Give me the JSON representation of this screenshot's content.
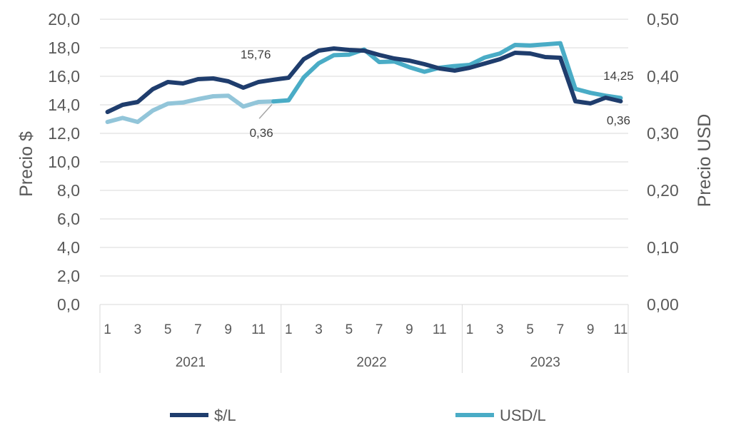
{
  "chart_data": {
    "type": "line",
    "ylabel": "Precio $",
    "y2label": "Precio USD",
    "ylim": [
      0,
      20
    ],
    "y2lim": [
      0,
      0.5
    ],
    "yticks": [
      "0,0",
      "2,0",
      "4,0",
      "6,0",
      "8,0",
      "10,0",
      "12,0",
      "14,0",
      "16,0",
      "18,0",
      "20,0"
    ],
    "y2ticks": [
      "0,00",
      "0,10",
      "0,20",
      "0,30",
      "0,40",
      "0,50"
    ],
    "groups": [
      "2021",
      "2022",
      "2023"
    ],
    "months_per_group": [
      12,
      12,
      11
    ],
    "month_tick_labels": [
      "1",
      "3",
      "5",
      "7",
      "9",
      "11"
    ],
    "grid": true,
    "legend_position": "bottom",
    "series": [
      {
        "name": "$/L",
        "axis": "left",
        "color": "#1f3d6d",
        "values": [
          13.5,
          14.0,
          14.2,
          15.1,
          15.6,
          15.5,
          15.8,
          15.85,
          15.65,
          15.2,
          15.6,
          15.76,
          15.9,
          17.2,
          17.8,
          17.95,
          17.85,
          17.8,
          17.5,
          17.25,
          17.1,
          16.85,
          16.55,
          16.4,
          16.6,
          16.9,
          17.2,
          17.65,
          17.6,
          17.35,
          17.3,
          14.25,
          14.1,
          14.5,
          14.25
        ]
      },
      {
        "name": "USD/L",
        "axis": "right",
        "color": "#4aacc6",
        "color_2021": "#92c5d9",
        "values": [
          0.32,
          0.327,
          0.32,
          0.34,
          0.352,
          0.354,
          0.36,
          0.365,
          0.366,
          0.347,
          0.355,
          0.356,
          0.358,
          0.398,
          0.423,
          0.437,
          0.438,
          0.447,
          0.425,
          0.426,
          0.416,
          0.408,
          0.415,
          0.418,
          0.42,
          0.433,
          0.44,
          0.455,
          0.454,
          0.456,
          0.458,
          0.378,
          0.371,
          0.366,
          0.362
        ]
      }
    ],
    "annotations": [
      {
        "text": "15,76",
        "series": 0,
        "index": 11
      },
      {
        "text": "0,36",
        "series": 1,
        "index": 11
      },
      {
        "text": "14,25",
        "series": 0,
        "index": 34
      },
      {
        "text": "0,36",
        "series": 1,
        "index": 34
      }
    ]
  }
}
